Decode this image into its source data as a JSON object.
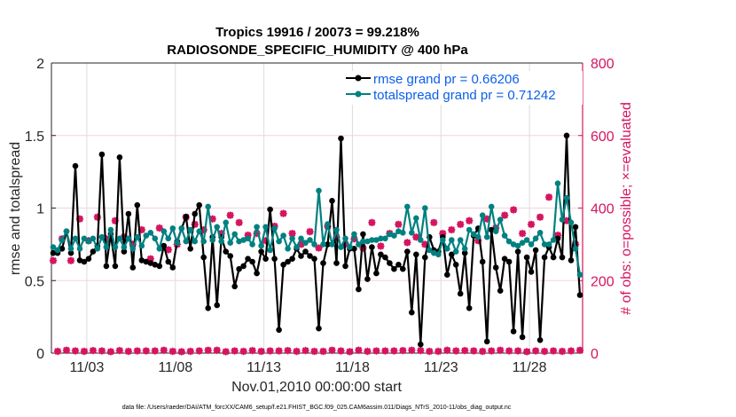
{
  "chart_data": {
    "type": "line",
    "title": [
      "Tropics 19916 / 20073 = 99.218%",
      "RADIOSONDE_SPECIFIC_HUMIDITY @ 400 hPa"
    ],
    "xlabel": "Nov.01,2010 00:00:00 start",
    "ylabel": "rmse and totalspread",
    "ylabel_right": "# of obs: o=possible; ×=evaluated",
    "footer": "data file: /Users/raeder/DAI/ATM_forcXX/CAM6_setup/f.e21.FHIST_BGC.f09_025.CAM6assim.011/Diags_NTrS_2010-11/obs_diag_output.nc",
    "x_ticks": [
      {
        "label": "11/03",
        "day": 2
      },
      {
        "label": "11/08",
        "day": 7
      },
      {
        "label": "11/13",
        "day": 12
      },
      {
        "label": "11/18",
        "day": 17
      },
      {
        "label": "11/23",
        "day": 22
      },
      {
        "label": "11/28",
        "day": 27
      }
    ],
    "xlim_days": [
      0,
      30
    ],
    "ylim": [
      0,
      2
    ],
    "yticks": [
      "0",
      "0.5",
      "1",
      "1.5",
      "2"
    ],
    "ylim_right": [
      0,
      800
    ],
    "yticks_right": [
      "0",
      "200",
      "400",
      "600",
      "800"
    ],
    "grid": true,
    "legend_position": "top-right",
    "legend": [
      {
        "label": "rmse grand pr = 0.66206",
        "color": "#000000"
      },
      {
        "label": "totalspread grand pr = 0.71242",
        "color": "#008080"
      }
    ],
    "time_step_hours": 6,
    "series": [
      {
        "name": "rmse",
        "color": "#000000",
        "axis": "left",
        "values": [
          0.69,
          0.69,
          0.72,
          0.84,
          0.69,
          1.29,
          0.64,
          0.63,
          0.65,
          0.7,
          0.74,
          1.37,
          0.6,
          0.82,
          0.6,
          1.35,
          0.7,
          0.96,
          0.59,
          1.02,
          0.64,
          0.63,
          0.62,
          0.61,
          0.6,
          0.74,
          0.63,
          0.59,
          0.77,
          0.86,
          0.94,
          0.72,
          0.96,
          1.02,
          0.66,
          0.31,
          0.8,
          0.33,
          0.8,
          0.7,
          0.67,
          0.46,
          0.58,
          0.6,
          0.65,
          0.63,
          0.55,
          0.7,
          0.65,
          0.99,
          0.65,
          0.16,
          0.61,
          0.63,
          0.65,
          0.72,
          0.67,
          0.7,
          0.67,
          0.65,
          0.17,
          0.62,
          0.75,
          1.05,
          0.62,
          1.48,
          0.6,
          0.72,
          0.72,
          0.44,
          0.82,
          0.51,
          0.73,
          0.55,
          0.68,
          0.66,
          0.62,
          0.58,
          0.61,
          0.58,
          0.7,
          0.28,
          0.68,
          0.06,
          0.66,
          0.8,
          0.71,
          0.7,
          0.8,
          0.54,
          0.68,
          0.61,
          0.41,
          0.69,
          0.31,
          0.81,
          0.86,
          0.63,
          0.08,
          0.85,
          0.59,
          0.43,
          0.65,
          0.63,
          0.15,
          0.7,
          0.11,
          0.66,
          0.56,
          0.71,
          0.09,
          0.66,
          0.73,
          0.66,
          0.79,
          0.66,
          1.5,
          0.64,
          0.87,
          0.4
        ]
      },
      {
        "name": "totalspread",
        "color": "#008080",
        "axis": "left",
        "values": [
          0.73,
          0.71,
          0.78,
          0.84,
          0.72,
          0.79,
          0.72,
          0.79,
          0.77,
          0.79,
          0.72,
          0.8,
          0.73,
          0.85,
          0.73,
          0.79,
          0.73,
          0.79,
          0.72,
          0.8,
          0.74,
          0.81,
          0.83,
          0.79,
          0.72,
          0.84,
          0.79,
          0.86,
          0.76,
          0.86,
          0.77,
          0.85,
          0.77,
          0.84,
          0.77,
          1.01,
          0.78,
          0.87,
          0.77,
          0.9,
          0.76,
          0.82,
          0.77,
          0.78,
          0.79,
          0.75,
          0.87,
          0.74,
          0.87,
          0.71,
          0.86,
          0.77,
          0.81,
          0.72,
          0.79,
          0.73,
          0.79,
          0.76,
          0.78,
          0.75,
          1.12,
          0.75,
          0.89,
          0.75,
          0.85,
          0.73,
          0.79,
          0.73,
          0.82,
          0.75,
          0.77,
          0.77,
          0.78,
          0.78,
          0.79,
          0.79,
          0.82,
          0.81,
          0.84,
          0.83,
          1.01,
          0.83,
          0.93,
          0.78,
          1.0,
          0.71,
          0.69,
          0.68,
          0.78,
          0.72,
          0.78,
          0.7,
          0.78,
          0.72,
          0.85,
          0.82,
          0.8,
          0.95,
          0.8,
          1.01,
          0.84,
          0.92,
          0.81,
          0.77,
          0.75,
          0.74,
          0.76,
          0.78,
          0.75,
          0.79,
          0.83,
          0.75,
          0.75,
          0.78,
          1.17,
          0.92,
          1.07,
          0.9,
          0.72,
          0.54
        ]
      },
      {
        "name": "evaluated_obs",
        "color": "#d6145f",
        "axis": "right",
        "values": [
          255,
          5,
          315,
          8,
          255,
          6,
          370,
          5,
          310,
          7,
          375,
          6,
          315,
          4,
          365,
          7,
          320,
          5,
          300,
          6,
          340,
          6,
          260,
          6,
          345,
          8,
          285,
          5,
          300,
          4,
          375,
          5,
          355,
          6,
          340,
          8,
          370,
          8,
          330,
          4,
          380,
          6,
          360,
          5,
          325,
          7,
          330,
          5,
          310,
          6,
          350,
          6,
          385,
          7,
          330,
          5,
          300,
          7,
          335,
          5,
          290,
          5,
          350,
          8,
          320,
          6,
          300,
          4,
          315,
          8,
          290,
          5,
          360,
          6,
          295,
          6,
          330,
          6,
          355,
          7,
          305,
          8,
          320,
          7,
          300,
          5,
          360,
          5,
          330,
          8,
          340,
          6,
          355,
          7,
          365,
          6,
          310,
          5,
          370,
          6,
          345,
          8,
          380,
          6,
          395,
          6,
          330,
          4,
          355,
          6,
          375,
          5,
          430,
          6,
          325,
          5,
          365,
          6,
          300,
          8
        ]
      }
    ]
  }
}
